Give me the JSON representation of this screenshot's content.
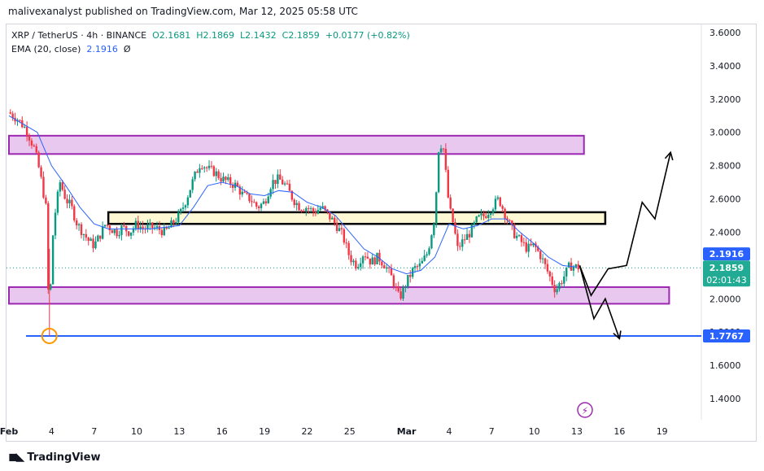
{
  "header": {
    "publisher": "malivexanalyst published on TradingView.com, Mar 12, 2025 05:58 UTC"
  },
  "legend": {
    "symbol": "XRP / TetherUS · 4h · BINANCE",
    "open": "O2.1681",
    "high": "H2.1869",
    "low": "L2.1432",
    "close": "C2.1859",
    "change": "+0.0177 (+0.82%)",
    "ema_label": "EMA (20, close)",
    "ema_value": "2.1916",
    "ema_suffix": "Ø"
  },
  "footer": {
    "logo_text": "TradingView"
  },
  "colors": {
    "up": "#089981",
    "down": "#f23645",
    "ema": "#2962ff",
    "support_line": "#2962ff",
    "zone_fill": "#e8c8ef",
    "zone_border": "#9c27b0",
    "mid_zone_fill": "#fff8d4",
    "mid_zone_border": "#000000",
    "current_label_bg": "#22ab94"
  },
  "chart_data": {
    "type": "candlestick",
    "symbol": "XRP / TetherUS",
    "timeframe": "4h",
    "exchange": "BINANCE",
    "ylim": [
      1.25,
      3.7
    ],
    "y_ticks": [
      1.4,
      1.6,
      1.8,
      2.0,
      2.2,
      2.4,
      2.6,
      2.8,
      3.0,
      3.2,
      3.4,
      3.6
    ],
    "y_tick_labels": [
      "1.4000",
      "1.6000",
      "1.8000",
      "2.0000",
      "2.2000",
      "2.4000",
      "2.6000",
      "2.8000",
      "3.0000",
      "3.2000",
      "3.4000",
      "3.6000"
    ],
    "x_ticks": [
      "Feb",
      "4",
      "7",
      "10",
      "13",
      "16",
      "19",
      "22",
      "25",
      "Mar",
      "4",
      "7",
      "10",
      "13",
      "16",
      "19"
    ],
    "x_start_day": 0,
    "x_days": 48.5,
    "x_tick_days": [
      0,
      3,
      6,
      9,
      12,
      15,
      18,
      21,
      24,
      28,
      31,
      34,
      37,
      40,
      43,
      46
    ],
    "price_path": [
      [
        0,
        3.12
      ],
      [
        0.6,
        3.08
      ],
      [
        1.2,
        3.02
      ],
      [
        1.8,
        2.9
      ],
      [
        2.2,
        2.75
      ],
      [
        2.6,
        2.55
      ],
      [
        2.85,
        1.8
      ],
      [
        3.0,
        2.3
      ],
      [
        3.3,
        2.55
      ],
      [
        3.6,
        2.7
      ],
      [
        4.0,
        2.6
      ],
      [
        4.4,
        2.55
      ],
      [
        4.8,
        2.45
      ],
      [
        5.2,
        2.4
      ],
      [
        5.6,
        2.35
      ],
      [
        6.0,
        2.32
      ],
      [
        6.4,
        2.38
      ],
      [
        6.8,
        2.45
      ],
      [
        7.2,
        2.42
      ],
      [
        7.6,
        2.4
      ],
      [
        8.0,
        2.43
      ],
      [
        8.5,
        2.4
      ],
      [
        9.0,
        2.45
      ],
      [
        9.5,
        2.42
      ],
      [
        10.0,
        2.43
      ],
      [
        10.5,
        2.42
      ],
      [
        11.0,
        2.4
      ],
      [
        11.5,
        2.45
      ],
      [
        12.0,
        2.5
      ],
      [
        12.5,
        2.6
      ],
      [
        13.0,
        2.72
      ],
      [
        13.5,
        2.82
      ],
      [
        14.0,
        2.78
      ],
      [
        14.5,
        2.76
      ],
      [
        15.0,
        2.72
      ],
      [
        15.5,
        2.7
      ],
      [
        16.0,
        2.68
      ],
      [
        16.5,
        2.62
      ],
      [
        17.0,
        2.6
      ],
      [
        17.5,
        2.55
      ],
      [
        18.0,
        2.58
      ],
      [
        18.5,
        2.7
      ],
      [
        19.0,
        2.72
      ],
      [
        19.5,
        2.68
      ],
      [
        20.0,
        2.6
      ],
      [
        20.5,
        2.55
      ],
      [
        21.0,
        2.55
      ],
      [
        21.5,
        2.52
      ],
      [
        22.0,
        2.55
      ],
      [
        22.5,
        2.5
      ],
      [
        23.0,
        2.45
      ],
      [
        23.5,
        2.38
      ],
      [
        24.0,
        2.25
      ],
      [
        24.5,
        2.2
      ],
      [
        25.0,
        2.28
      ],
      [
        25.5,
        2.22
      ],
      [
        26.0,
        2.25
      ],
      [
        26.5,
        2.2
      ],
      [
        27.0,
        2.12
      ],
      [
        27.5,
        2.0
      ],
      [
        28.0,
        2.1
      ],
      [
        28.5,
        2.18
      ],
      [
        29.0,
        2.2
      ],
      [
        29.5,
        2.28
      ],
      [
        30.0,
        2.5
      ],
      [
        30.3,
        2.95
      ],
      [
        30.6,
        2.9
      ],
      [
        31.0,
        2.55
      ],
      [
        31.3,
        2.45
      ],
      [
        31.6,
        2.3
      ],
      [
        32.0,
        2.35
      ],
      [
        32.5,
        2.4
      ],
      [
        33.0,
        2.48
      ],
      [
        33.5,
        2.5
      ],
      [
        34.0,
        2.55
      ],
      [
        34.5,
        2.6
      ],
      [
        35.0,
        2.5
      ],
      [
        35.5,
        2.4
      ],
      [
        36.0,
        2.35
      ],
      [
        36.5,
        2.3
      ],
      [
        37.0,
        2.32
      ],
      [
        37.5,
        2.25
      ],
      [
        38.0,
        2.15
      ],
      [
        38.5,
        2.05
      ],
      [
        39.0,
        2.12
      ],
      [
        39.5,
        2.2
      ],
      [
        40.0,
        2.19
      ]
    ],
    "ema_path": [
      [
        0,
        3.1
      ],
      [
        2.0,
        3.0
      ],
      [
        3.0,
        2.8
      ],
      [
        4.0,
        2.68
      ],
      [
        5.0,
        2.55
      ],
      [
        6.0,
        2.45
      ],
      [
        7.0,
        2.42
      ],
      [
        8.0,
        2.42
      ],
      [
        10.0,
        2.42
      ],
      [
        12.0,
        2.44
      ],
      [
        13.0,
        2.55
      ],
      [
        14.0,
        2.68
      ],
      [
        15.0,
        2.7
      ],
      [
        16.0,
        2.68
      ],
      [
        17.0,
        2.63
      ],
      [
        18.0,
        2.62
      ],
      [
        19.0,
        2.65
      ],
      [
        20.0,
        2.64
      ],
      [
        21.0,
        2.58
      ],
      [
        22.0,
        2.55
      ],
      [
        23.0,
        2.5
      ],
      [
        24.0,
        2.4
      ],
      [
        25.0,
        2.3
      ],
      [
        26.0,
        2.25
      ],
      [
        27.0,
        2.18
      ],
      [
        28.0,
        2.15
      ],
      [
        29.0,
        2.17
      ],
      [
        30.0,
        2.25
      ],
      [
        31.0,
        2.45
      ],
      [
        32.0,
        2.42
      ],
      [
        33.0,
        2.44
      ],
      [
        34.0,
        2.48
      ],
      [
        35.0,
        2.48
      ],
      [
        36.0,
        2.4
      ],
      [
        37.0,
        2.33
      ],
      [
        38.0,
        2.25
      ],
      [
        39.0,
        2.2
      ],
      [
        40.0,
        2.19
      ]
    ],
    "zones": [
      {
        "name": "upper-resistance-zone",
        "x0_day": 0,
        "x1_day": 40.5,
        "y_low": 2.87,
        "y_high": 2.98
      },
      {
        "name": "mid-zone",
        "x0_day": 7.0,
        "x1_day": 42.0,
        "y_low": 2.45,
        "y_high": 2.52
      },
      {
        "name": "lower-support-zone",
        "x0_day": 0,
        "x1_day": 46.5,
        "y_low": 1.97,
        "y_high": 2.07
      }
    ],
    "support_line": {
      "value": 1.7767,
      "x0_day": 1.2
    },
    "wick_low_marker": {
      "day": 2.85,
      "value": 1.7767
    },
    "projection_paths": [
      [
        [
          40.2,
          2.2
        ],
        [
          41.0,
          2.02
        ],
        [
          42.2,
          2.18
        ],
        [
          43.5,
          2.2
        ],
        [
          44.6,
          2.58
        ],
        [
          45.5,
          2.48
        ],
        [
          46.6,
          2.88
        ]
      ],
      [
        [
          40.2,
          2.2
        ],
        [
          41.2,
          1.88
        ],
        [
          42.0,
          2.0
        ],
        [
          43.0,
          1.76
        ]
      ]
    ],
    "price_labels": [
      {
        "text": "2.1916",
        "value": 2.1916,
        "color": "#2962ff"
      },
      {
        "text": "2.1859",
        "value": 2.1859,
        "color": "#22ab94"
      },
      {
        "text": "02:01:43",
        "value": 2.1859,
        "color": "#22ab94"
      },
      {
        "text": "1.7767",
        "value": 1.7767,
        "color": "#2962ff"
      }
    ]
  }
}
